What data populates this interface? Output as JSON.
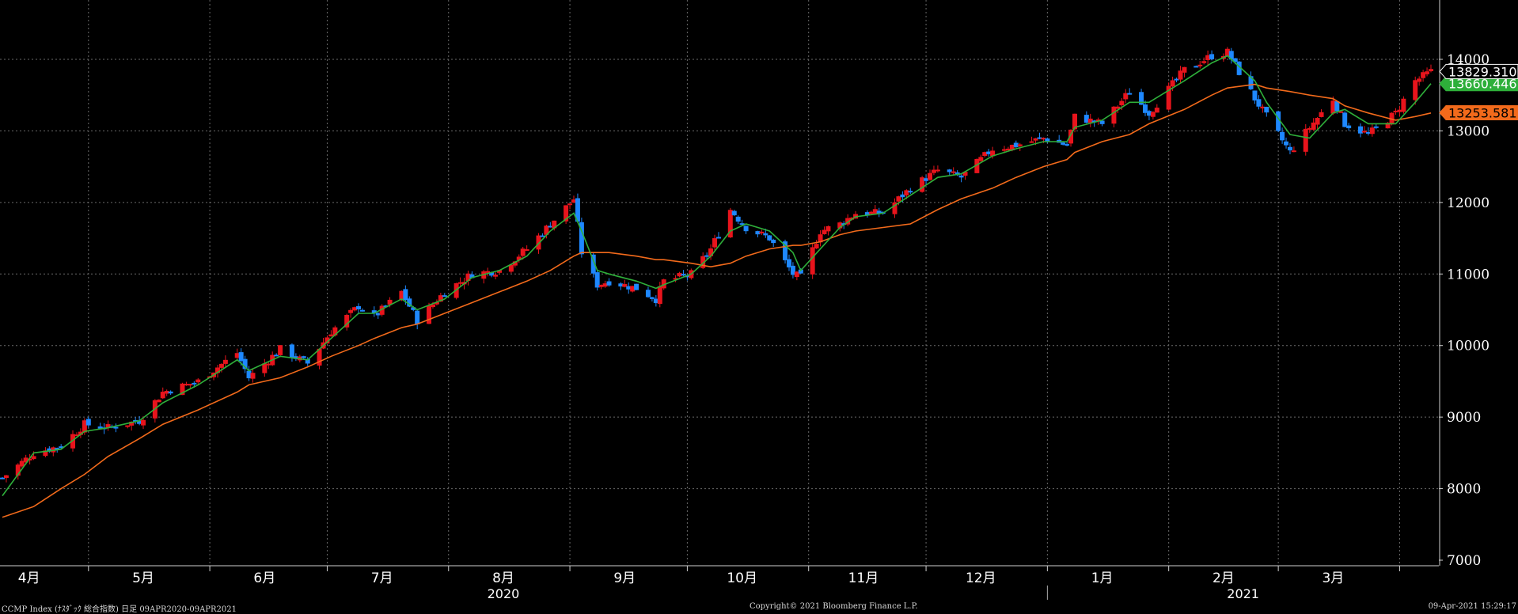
{
  "chart_data": {
    "type": "candlestick",
    "y_axis": {
      "ticks": [
        "7000",
        "8000",
        "9000",
        "10000",
        "11000",
        "12000",
        "13000",
        "14000"
      ],
      "range": [
        6950,
        14800
      ]
    },
    "x_axis": {
      "month_labels": [
        "4月",
        "5月",
        "6月",
        "7月",
        "8月",
        "9月",
        "10月",
        "11月",
        "12月",
        "1月",
        "2月",
        "3月"
      ],
      "year_labels": [
        "2020",
        "2021"
      ],
      "range": [
        "2020-04-09",
        "2021-04-09"
      ]
    },
    "last_values": {
      "close": "13829.310",
      "ma_short": "13660.446",
      "ma_long": "13253.581"
    },
    "series": [
      {
        "name": "ma_short",
        "color": "#2eaf3a"
      },
      {
        "name": "ma_long",
        "color": "#f26a1b"
      }
    ],
    "candle_colors": {
      "up": "#e8141c",
      "down": "#1e88ff"
    },
    "close_path": [
      [
        "2020-04-09",
        8150
      ],
      [
        "2020-04-17",
        8500
      ],
      [
        "2020-04-24",
        8600
      ],
      [
        "2020-04-30",
        8900
      ],
      [
        "2020-05-06",
        8850
      ],
      [
        "2020-05-14",
        8950
      ],
      [
        "2020-05-20",
        9350
      ],
      [
        "2020-05-29",
        9500
      ],
      [
        "2020-06-08",
        9900
      ],
      [
        "2020-06-11",
        9550
      ],
      [
        "2020-06-19",
        9950
      ],
      [
        "2020-06-26",
        9750
      ],
      [
        "2020-07-02",
        10200
      ],
      [
        "2020-07-09",
        10550
      ],
      [
        "2020-07-13",
        10400
      ],
      [
        "2020-07-20",
        10750
      ],
      [
        "2020-07-24",
        10350
      ],
      [
        "2020-07-31",
        10750
      ],
      [
        "2020-08-07",
        11000
      ],
      [
        "2020-08-14",
        11050
      ],
      [
        "2020-08-21",
        11350
      ],
      [
        "2020-08-27",
        11700
      ],
      [
        "2020-09-02",
        12050
      ],
      [
        "2020-09-04",
        11300
      ],
      [
        "2020-09-08",
        10850
      ],
      [
        "2020-09-11",
        10900
      ],
      [
        "2020-09-18",
        10800
      ],
      [
        "2020-09-23",
        10650
      ],
      [
        "2020-09-25",
        10900
      ],
      [
        "2020-10-02",
        11000
      ],
      [
        "2020-10-07",
        11350
      ],
      [
        "2020-10-12",
        11900
      ],
      [
        "2020-10-16",
        11650
      ],
      [
        "2020-10-22",
        11500
      ],
      [
        "2020-10-28",
        11000
      ],
      [
        "2020-10-30",
        10950
      ],
      [
        "2020-11-04",
        11600
      ],
      [
        "2020-11-09",
        11700
      ],
      [
        "2020-11-13",
        11850
      ],
      [
        "2020-11-20",
        11850
      ],
      [
        "2020-11-27",
        12200
      ],
      [
        "2020-12-04",
        12450
      ],
      [
        "2020-12-10",
        12350
      ],
      [
        "2020-12-18",
        12750
      ],
      [
        "2020-12-24",
        12800
      ],
      [
        "2020-12-31",
        12900
      ],
      [
        "2021-01-06",
        12800
      ],
      [
        "2021-01-08",
        13200
      ],
      [
        "2021-01-15",
        13100
      ],
      [
        "2021-01-22",
        13550
      ],
      [
        "2021-01-27",
        13250
      ],
      [
        "2021-02-05",
        13850
      ],
      [
        "2021-02-12",
        14050
      ],
      [
        "2021-02-16",
        14100
      ],
      [
        "2021-02-23",
        13450
      ],
      [
        "2021-02-26",
        13200
      ],
      [
        "2021-03-04",
        12700
      ],
      [
        "2021-03-09",
        13050
      ],
      [
        "2021-03-15",
        13450
      ],
      [
        "2021-03-18",
        13100
      ],
      [
        "2021-03-24",
        12950
      ],
      [
        "2021-03-31",
        13250
      ],
      [
        "2021-04-05",
        13700
      ],
      [
        "2021-04-09",
        13829
      ]
    ],
    "ma_short_path": [
      [
        "2020-04-09",
        7900
      ],
      [
        "2020-04-17",
        8500
      ],
      [
        "2020-04-24",
        8550
      ],
      [
        "2020-04-30",
        8800
      ],
      [
        "2020-05-06",
        8850
      ],
      [
        "2020-05-14",
        8950
      ],
      [
        "2020-05-20",
        9200
      ],
      [
        "2020-05-29",
        9450
      ],
      [
        "2020-06-08",
        9800
      ],
      [
        "2020-06-11",
        9650
      ],
      [
        "2020-06-19",
        9850
      ],
      [
        "2020-06-26",
        9800
      ],
      [
        "2020-07-02",
        10100
      ],
      [
        "2020-07-09",
        10450
      ],
      [
        "2020-07-13",
        10450
      ],
      [
        "2020-07-20",
        10650
      ],
      [
        "2020-07-24",
        10500
      ],
      [
        "2020-07-31",
        10650
      ],
      [
        "2020-08-07",
        10950
      ],
      [
        "2020-08-14",
        11050
      ],
      [
        "2020-08-21",
        11250
      ],
      [
        "2020-08-27",
        11600
      ],
      [
        "2020-09-02",
        11850
      ],
      [
        "2020-09-04",
        11600
      ],
      [
        "2020-09-08",
        11050
      ],
      [
        "2020-09-11",
        11000
      ],
      [
        "2020-09-18",
        10900
      ],
      [
        "2020-09-23",
        10800
      ],
      [
        "2020-09-25",
        10850
      ],
      [
        "2020-10-02",
        11000
      ],
      [
        "2020-10-07",
        11250
      ],
      [
        "2020-10-12",
        11600
      ],
      [
        "2020-10-16",
        11700
      ],
      [
        "2020-10-22",
        11600
      ],
      [
        "2020-10-28",
        11300
      ],
      [
        "2020-10-30",
        11050
      ],
      [
        "2020-11-04",
        11350
      ],
      [
        "2020-11-09",
        11650
      ],
      [
        "2020-11-13",
        11800
      ],
      [
        "2020-11-20",
        11850
      ],
      [
        "2020-11-27",
        12100
      ],
      [
        "2020-12-04",
        12350
      ],
      [
        "2020-12-10",
        12400
      ],
      [
        "2020-12-18",
        12650
      ],
      [
        "2020-12-24",
        12750
      ],
      [
        "2020-12-31",
        12850
      ],
      [
        "2021-01-06",
        12850
      ],
      [
        "2021-01-08",
        13050
      ],
      [
        "2021-01-15",
        13150
      ],
      [
        "2021-01-22",
        13400
      ],
      [
        "2021-01-27",
        13400
      ],
      [
        "2021-02-05",
        13700
      ],
      [
        "2021-02-12",
        13950
      ],
      [
        "2021-02-16",
        14050
      ],
      [
        "2021-02-23",
        13700
      ],
      [
        "2021-02-26",
        13400
      ],
      [
        "2021-03-04",
        12950
      ],
      [
        "2021-03-09",
        12900
      ],
      [
        "2021-03-15",
        13250
      ],
      [
        "2021-03-18",
        13300
      ],
      [
        "2021-03-24",
        13100
      ],
      [
        "2021-03-31",
        13100
      ],
      [
        "2021-04-05",
        13400
      ],
      [
        "2021-04-09",
        13660
      ]
    ],
    "ma_long_path": [
      [
        "2020-04-09",
        7600
      ],
      [
        "2020-04-17",
        7750
      ],
      [
        "2020-04-24",
        8000
      ],
      [
        "2020-04-30",
        8200
      ],
      [
        "2020-05-06",
        8450
      ],
      [
        "2020-05-14",
        8700
      ],
      [
        "2020-05-20",
        8900
      ],
      [
        "2020-05-29",
        9100
      ],
      [
        "2020-06-08",
        9350
      ],
      [
        "2020-06-11",
        9450
      ],
      [
        "2020-06-19",
        9550
      ],
      [
        "2020-06-26",
        9700
      ],
      [
        "2020-07-02",
        9850
      ],
      [
        "2020-07-09",
        10000
      ],
      [
        "2020-07-13",
        10100
      ],
      [
        "2020-07-20",
        10250
      ],
      [
        "2020-07-24",
        10300
      ],
      [
        "2020-07-31",
        10450
      ],
      [
        "2020-08-07",
        10600
      ],
      [
        "2020-08-14",
        10750
      ],
      [
        "2020-08-21",
        10900
      ],
      [
        "2020-08-27",
        11050
      ],
      [
        "2020-09-02",
        11250
      ],
      [
        "2020-09-04",
        11300
      ],
      [
        "2020-09-08",
        11300
      ],
      [
        "2020-09-11",
        11300
      ],
      [
        "2020-09-18",
        11250
      ],
      [
        "2020-09-23",
        11200
      ],
      [
        "2020-09-25",
        11200
      ],
      [
        "2020-10-02",
        11150
      ],
      [
        "2020-10-07",
        11100
      ],
      [
        "2020-10-12",
        11150
      ],
      [
        "2020-10-16",
        11250
      ],
      [
        "2020-10-22",
        11350
      ],
      [
        "2020-10-28",
        11400
      ],
      [
        "2020-10-30",
        11400
      ],
      [
        "2020-11-04",
        11450
      ],
      [
        "2020-11-09",
        11550
      ],
      [
        "2020-11-13",
        11600
      ],
      [
        "2020-11-20",
        11650
      ],
      [
        "2020-11-27",
        11700
      ],
      [
        "2020-12-04",
        11900
      ],
      [
        "2020-12-10",
        12050
      ],
      [
        "2020-12-18",
        12200
      ],
      [
        "2020-12-24",
        12350
      ],
      [
        "2020-12-31",
        12500
      ],
      [
        "2021-01-06",
        12600
      ],
      [
        "2021-01-08",
        12700
      ],
      [
        "2021-01-15",
        12850
      ],
      [
        "2021-01-22",
        12950
      ],
      [
        "2021-01-27",
        13100
      ],
      [
        "2021-02-05",
        13300
      ],
      [
        "2021-02-12",
        13500
      ],
      [
        "2021-02-16",
        13600
      ],
      [
        "2021-02-23",
        13650
      ],
      [
        "2021-02-26",
        13600
      ],
      [
        "2021-03-04",
        13550
      ],
      [
        "2021-03-09",
        13500
      ],
      [
        "2021-03-15",
        13450
      ],
      [
        "2021-03-18",
        13350
      ],
      [
        "2021-03-24",
        13250
      ],
      [
        "2021-03-31",
        13150
      ],
      [
        "2021-04-05",
        13200
      ],
      [
        "2021-04-09",
        13250
      ]
    ]
  },
  "footer": {
    "left": "CCMP Index (ﾅｽﾀﾞｯｸ 総合指数)  日足 09APR2020-09APR2021",
    "center": "Copyright© 2021 Bloomberg Finance L.P.",
    "right": "09-Apr-2021 15:29:17"
  }
}
